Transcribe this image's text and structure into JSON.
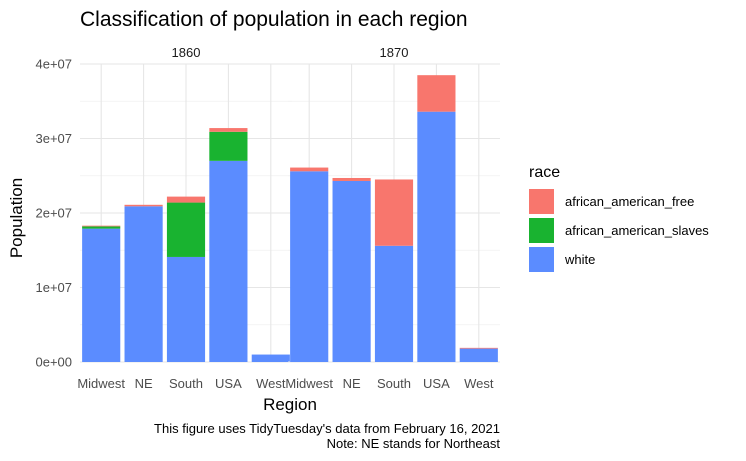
{
  "chart_data": {
    "type": "bar",
    "title": "Classification of population in each region",
    "xlabel": "Region",
    "ylabel": "Population",
    "ylim": [
      0,
      40000000
    ],
    "yticks": [
      0,
      10000000,
      20000000,
      30000000,
      40000000
    ],
    "ytick_labels": [
      "0e+00",
      "1e+07",
      "2e+07",
      "3e+07",
      "4e+07"
    ],
    "grid": true,
    "stacked": true,
    "categories": [
      "Midwest",
      "NE",
      "South",
      "USA",
      "West"
    ],
    "facets": [
      {
        "label": "1860",
        "series": [
          {
            "name": "white",
            "values": [
              17900000,
              20900000,
              14100000,
              27000000,
              1000000
            ]
          },
          {
            "name": "african_american_slaves",
            "values": [
              300000,
              0,
              7300000,
              3900000,
              0
            ]
          },
          {
            "name": "african_american_free",
            "values": [
              100000,
              200000,
              800000,
              500000,
              0
            ]
          }
        ]
      },
      {
        "label": "1870",
        "series": [
          {
            "name": "white",
            "values": [
              25600000,
              24300000,
              15600000,
              33600000,
              1800000
            ]
          },
          {
            "name": "african_american_slaves",
            "values": [
              0,
              0,
              0,
              0,
              0
            ]
          },
          {
            "name": "african_american_free",
            "values": [
              500000,
              400000,
              8900000,
              4900000,
              100000
            ]
          }
        ]
      }
    ],
    "legend": {
      "title": "race",
      "placement": "right",
      "entries": [
        {
          "name": "african_american_free",
          "color": "#F8766D"
        },
        {
          "name": "african_american_slaves",
          "color": "#19B330"
        },
        {
          "name": "white",
          "color": "#5B8CFF"
        }
      ]
    },
    "caption": [
      "This figure uses TidyTuesday's data from February 16, 2021",
      "Note: NE stands for Northeast"
    ]
  }
}
